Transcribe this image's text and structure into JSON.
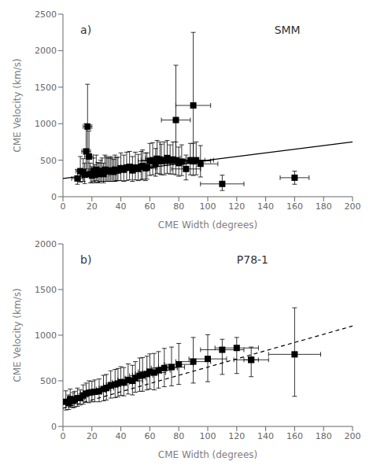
{
  "chart_data": [
    {
      "type": "scatter",
      "annotations": [
        "a)",
        "SMM"
      ],
      "xlabel": "CME Width  (degrees)",
      "ylabel": "CME Velocity  (km/s)",
      "xlim": [
        0,
        200
      ],
      "ylim": [
        0,
        2500
      ],
      "xticks": [
        0,
        20,
        40,
        60,
        80,
        100,
        120,
        140,
        160,
        180,
        200
      ],
      "yticks": [
        0,
        500,
        1000,
        1500,
        2000,
        2500
      ],
      "grid": false,
      "series": [
        {
          "type": "scatter",
          "marker": "square",
          "color": "#000000",
          "x": [
            10,
            12,
            14,
            15,
            16,
            17,
            18,
            19,
            20,
            21,
            22,
            23,
            24,
            25,
            26,
            27,
            28,
            29,
            30,
            31,
            32,
            33,
            34,
            35,
            36,
            37,
            38,
            40,
            42,
            44,
            46,
            48,
            50,
            52,
            54,
            55,
            57,
            58,
            60,
            62,
            64,
            65,
            67,
            68,
            70,
            72,
            74,
            76,
            78,
            80,
            82,
            85,
            88,
            90,
            92,
            95,
            110,
            160
          ],
          "values": [
            250,
            350,
            340,
            300,
            620,
            960,
            550,
            310,
            290,
            350,
            300,
            370,
            320,
            310,
            340,
            350,
            310,
            370,
            360,
            350,
            350,
            360,
            350,
            340,
            370,
            360,
            360,
            390,
            370,
            400,
            410,
            360,
            400,
            380,
            410,
            420,
            390,
            400,
            490,
            500,
            450,
            520,
            510,
            490,
            500,
            530,
            490,
            510,
            500,
            460,
            480,
            380,
            500,
            490,
            500,
            450,
            175,
            260
          ],
          "xerr": [
            4,
            3,
            3,
            3,
            3,
            3,
            3,
            3,
            3,
            3,
            3,
            3,
            3,
            4,
            4,
            4,
            4,
            4,
            4,
            4,
            4,
            4,
            4,
            5,
            5,
            5,
            5,
            5,
            5,
            6,
            6,
            6,
            6,
            7,
            7,
            7,
            7,
            7,
            8,
            8,
            8,
            8,
            8,
            8,
            9,
            9,
            9,
            9,
            9,
            10,
            10,
            10,
            10,
            12,
            12,
            12,
            15,
            10
          ],
          "yerr_lo": [
            80,
            150,
            130,
            120,
            280,
            580,
            270,
            120,
            100,
            140,
            110,
            150,
            120,
            120,
            130,
            140,
            120,
            160,
            150,
            140,
            140,
            150,
            140,
            130,
            160,
            140,
            140,
            170,
            160,
            180,
            180,
            150,
            170,
            160,
            180,
            180,
            170,
            160,
            200,
            200,
            170,
            200,
            200,
            190,
            200,
            210,
            180,
            200,
            200,
            180,
            190,
            150,
            200,
            200,
            200,
            180,
            90,
            90
          ],
          "yerr_hi": [
            120,
            200,
            180,
            160,
            380,
            580,
            350,
            150,
            120,
            180,
            140,
            200,
            150,
            150,
            160,
            180,
            150,
            200,
            190,
            180,
            180,
            190,
            180,
            170,
            200,
            180,
            180,
            210,
            200,
            210,
            210,
            190,
            210,
            200,
            210,
            220,
            210,
            200,
            240,
            240,
            210,
            250,
            240,
            230,
            250,
            240,
            220,
            240,
            250,
            220,
            230,
            190,
            230,
            240,
            250,
            250,
            120,
            90
          ]
        },
        {
          "type": "scatter",
          "marker": "square",
          "color": "#000000",
          "x": [
            78
          ],
          "values": [
            1050
          ],
          "xerr": [
            10
          ],
          "yerr_lo": [
            600
          ],
          "yerr_hi": [
            750
          ]
        },
        {
          "type": "scatter",
          "marker": "square",
          "color": "#000000",
          "x": [
            90
          ],
          "values": [
            1250
          ],
          "xerr": [
            12
          ],
          "yerr_lo": [
            800
          ],
          "yerr_hi": [
            1000
          ]
        },
        {
          "type": "line",
          "line_style": "solid",
          "color": "#000000",
          "x": [
            0,
            200
          ],
          "values": [
            250,
            750
          ]
        }
      ]
    },
    {
      "type": "scatter",
      "annotations": [
        "b)",
        "P78-1"
      ],
      "xlabel": "CME Width  (degrees)",
      "ylabel": "CME Velocity  (km/s)",
      "xlim": [
        0,
        200
      ],
      "ylim": [
        0,
        2000
      ],
      "xticks": [
        0,
        20,
        40,
        60,
        80,
        100,
        120,
        140,
        160,
        180,
        200
      ],
      "yticks": [
        0,
        500,
        1000,
        1500,
        2000
      ],
      "grid": false,
      "series": [
        {
          "type": "scatter",
          "marker": "square",
          "color": "#000000",
          "x": [
            2,
            4,
            5,
            7,
            8,
            10,
            12,
            14,
            16,
            18,
            20,
            22,
            25,
            28,
            30,
            33,
            36,
            38,
            40,
            42,
            45,
            48,
            50,
            53,
            55,
            58,
            60,
            63,
            66,
            70,
            75,
            80,
            90,
            100,
            110,
            120,
            130,
            160
          ],
          "values": [
            270,
            255,
            300,
            280,
            290,
            310,
            310,
            340,
            360,
            370,
            375,
            380,
            385,
            410,
            420,
            450,
            460,
            470,
            485,
            480,
            510,
            500,
            530,
            555,
            560,
            575,
            600,
            590,
            615,
            640,
            650,
            680,
            710,
            740,
            840,
            860,
            730,
            790
          ],
          "xerr": [
            1,
            2,
            2,
            2,
            2,
            3,
            3,
            3,
            4,
            4,
            4,
            4,
            5,
            5,
            5,
            5,
            6,
            6,
            6,
            6,
            7,
            7,
            7,
            7,
            7,
            8,
            8,
            8,
            8,
            9,
            9,
            10,
            12,
            13,
            15,
            15,
            12,
            18
          ],
          "yerr_lo": [
            90,
            70,
            90,
            75,
            80,
            90,
            75,
            95,
            95,
            110,
            105,
            110,
            115,
            130,
            130,
            140,
            145,
            145,
            145,
            145,
            155,
            155,
            155,
            170,
            175,
            175,
            190,
            190,
            195,
            205,
            205,
            220,
            235,
            250,
            270,
            280,
            185,
            460
          ],
          "yerr_hi": [
            120,
            90,
            110,
            90,
            95,
            110,
            90,
            115,
            115,
            130,
            120,
            130,
            135,
            150,
            150,
            160,
            165,
            165,
            170,
            165,
            175,
            170,
            180,
            195,
            195,
            195,
            195,
            210,
            205,
            215,
            220,
            230,
            265,
            265,
            115,
            115,
            140,
            510
          ]
        },
        {
          "type": "scatter",
          "marker": "square",
          "color": "#000000",
          "x": [
            130
          ],
          "values": [
            730
          ],
          "xerr": [
            5
          ]
        },
        {
          "type": "line",
          "line_style": "dashed",
          "color": "#000000",
          "x": [
            0,
            200
          ],
          "values": [
            200,
            1100
          ]
        }
      ]
    }
  ]
}
